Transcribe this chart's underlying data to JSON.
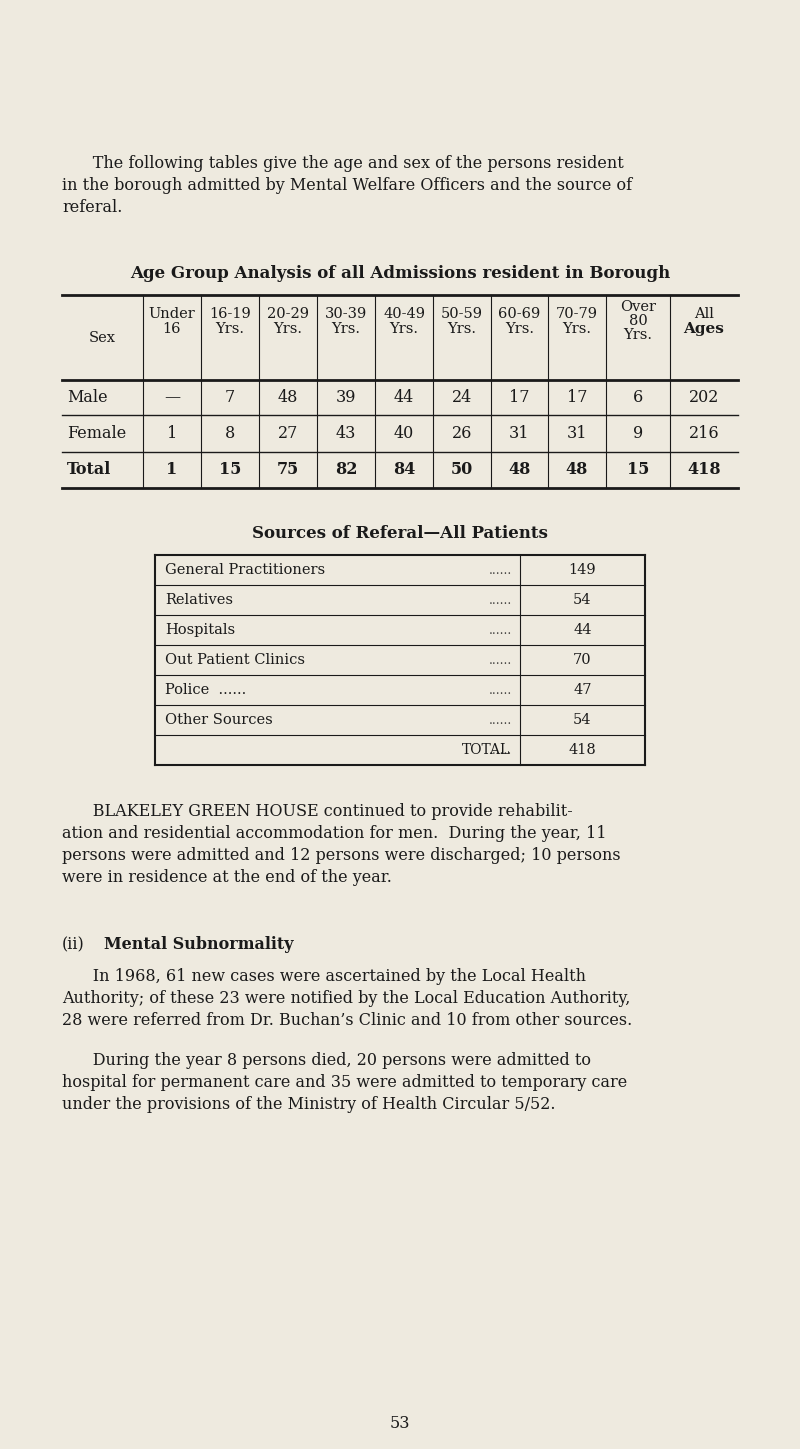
{
  "bg_color": "#eeeadf",
  "text_color": "#1a1a1a",
  "intro_text_line1": "      The following tables give the age and sex of the persons resident",
  "intro_text_line2": "in the borough admitted by Mental Welfare Officers and the source of",
  "intro_text_line3": "referal.",
  "table1_title": "Age Group Analysis of all Admissions resident in Borough",
  "col_header_top": [
    "",
    "Under",
    "16-19",
    "20-29",
    "30-39",
    "40-49",
    "50-59",
    "60-69",
    "70-79",
    "Over",
    "All"
  ],
  "col_header_bot": [
    "Sex",
    "16",
    "Yrs.",
    "Yrs.",
    "Yrs.",
    "Yrs.",
    "Yrs.",
    "Yrs.",
    "Yrs.",
    "80\nYrs.",
    "Ages"
  ],
  "table1_rows": [
    [
      "Male",
      "—",
      "7",
      "48",
      "39",
      "44",
      "24",
      "17",
      "17",
      "6",
      "202"
    ],
    [
      "Female",
      "1",
      "8",
      "27",
      "43",
      "40",
      "26",
      "31",
      "31",
      "9",
      "216"
    ],
    [
      "Total",
      "1",
      "15",
      "75",
      "82",
      "84",
      "50",
      "48",
      "48",
      "15",
      "418"
    ]
  ],
  "table2_title": "Sources of Referal—All Patients",
  "table2_rows": [
    [
      "General Practitioners",
      "......",
      "149"
    ],
    [
      "Relatives",
      "......",
      "54"
    ],
    [
      "Hospitals",
      "......",
      "44"
    ],
    [
      "Out Patient Clinics",
      "......",
      "70"
    ],
    [
      "Police  ......",
      "......",
      "47"
    ],
    [
      "Other Sources",
      "......",
      "54"
    ],
    [
      "Total",
      "......",
      "418"
    ]
  ],
  "blakeley_line1": "      BLAKELEY GREEN HOUSE continued to provide rehabilit-",
  "blakeley_line2": "ation and residential accommodation for men.  During the year, 11",
  "blakeley_line3": "persons were admitted and 12 persons were discharged; 10 persons",
  "blakeley_line4": "were in residence at the end of the year.",
  "ms_title_prefix": "(ii)",
  "ms_title_bold": "  Mental Subnormality",
  "ms_p1_line1": "      In 1968, 61 new cases were ascertained by the Local Health",
  "ms_p1_line2": "Authority; of these 23 were notified by the Local Education Authority,",
  "ms_p1_line3": "28 were referred from Dr. Buchan’s Clinic and 10 from other sources.",
  "ms_p2_line1": "      During the year 8 persons died, 20 persons were admitted to",
  "ms_p2_line2": "hospital for permanent care and 35 were admitted to temporary care",
  "ms_p2_line3": "under the provisions of the Ministry of Health Circular 5/52.",
  "page_number": "53"
}
